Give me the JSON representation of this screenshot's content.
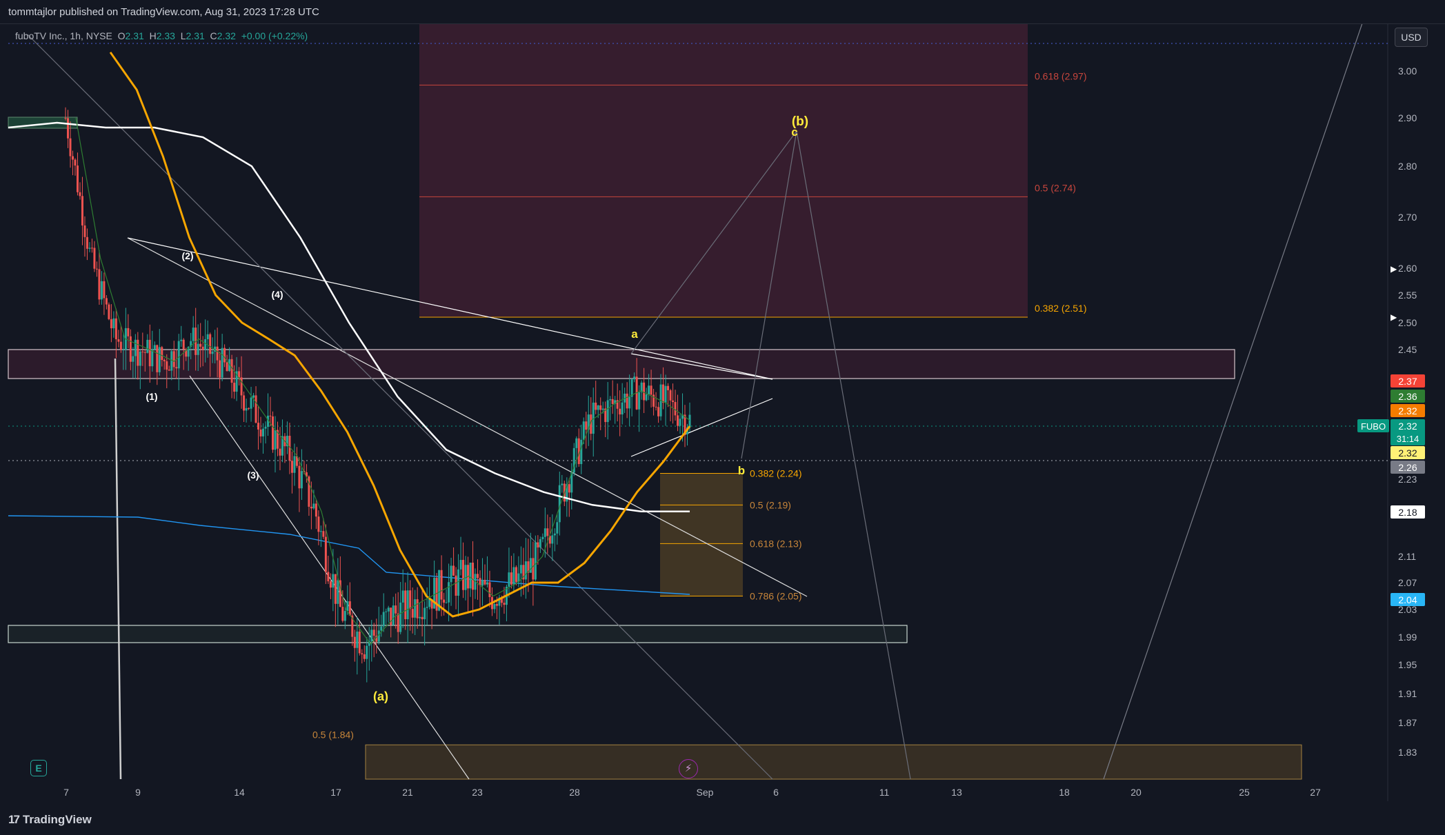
{
  "header": {
    "published_by": "tommtajlor published on TradingView.com, Aug 31, 2023 17:28 UTC"
  },
  "legend": {
    "symbol": "fuboTV Inc., 1h, NYSE",
    "o_label": "O",
    "o_val": "2.31",
    "h_label": "H",
    "h_val": "2.33",
    "l_label": "L",
    "l_val": "2.31",
    "c_label": "C",
    "c_val": "2.32",
    "change": "+0.00 (+0.22%)"
  },
  "currency_button": "USD",
  "footer_brand": "TradingView",
  "events_button": "E",
  "colors": {
    "background": "#131722",
    "up_candle": "#26a69a",
    "down_candle": "#ef5350",
    "ma_fast": "#f7a600",
    "ma_slow": "#ffffff",
    "vwap": "#2196f3",
    "fib_upper": "#4a2430",
    "fib_lower": "#3d3020",
    "wave_label": "#ffeb3b"
  },
  "chart_data": {
    "type": "line",
    "symbol": "FUBO",
    "price_axis": {
      "ticks": [
        "3.00",
        "2.90",
        "2.80",
        "2.70",
        "2.60",
        "2.55",
        "2.50",
        "2.45",
        "2.23",
        "2.11",
        "2.07",
        "2.03",
        "1.99",
        "1.95",
        "1.91",
        "1.87",
        "1.83"
      ]
    },
    "time_axis": {
      "ticks": [
        "7",
        "9",
        "14",
        "17",
        "21",
        "23",
        "28",
        "Sep",
        "6",
        "11",
        "13",
        "18",
        "20",
        "25",
        "27"
      ]
    },
    "price_badges": [
      {
        "label": "2.37",
        "color": "#f44336"
      },
      {
        "label": "2.36",
        "color": "#2e7d32"
      },
      {
        "label": "2.32",
        "color": "#f57c00"
      },
      {
        "label": "2.32",
        "color": "#089981",
        "symbol": "FUBO",
        "countdown": "31:14"
      },
      {
        "label": "2.32",
        "color": "#fff176"
      },
      {
        "label": "2.26",
        "color": "#787b86"
      },
      {
        "label": "2.18",
        "color": "#ffffff"
      },
      {
        "label": "2.04",
        "color": "#29b6f6"
      }
    ],
    "fib_levels_upper": [
      {
        "label": "0.618 (2.97)",
        "price": 2.97
      },
      {
        "label": "0.5 (2.74)",
        "price": 2.74
      },
      {
        "label": "0.382 (2.51)",
        "price": 2.51
      }
    ],
    "fib_levels_lower": [
      {
        "label": "0.382 (2.24)",
        "price": 2.24
      },
      {
        "label": "0.5 (2.19)",
        "price": 2.19
      },
      {
        "label": "0.618 (2.13)",
        "price": 2.13
      },
      {
        "label": "0.786 (2.05)",
        "price": 2.05
      }
    ],
    "fib_extension": {
      "label": "0.5 (1.84)",
      "price": 1.84
    },
    "wave_labels": [
      {
        "text": "(1)",
        "color": "#ffffff"
      },
      {
        "text": "(2)",
        "color": "#ffffff"
      },
      {
        "text": "(3)",
        "color": "#ffffff"
      },
      {
        "text": "(4)",
        "color": "#ffffff"
      },
      {
        "text": "(a)",
        "color": "#ffeb3b"
      },
      {
        "text": "a",
        "color": "#ffeb3b"
      },
      {
        "text": "b",
        "color": "#ffeb3b"
      },
      {
        "text": "c",
        "color": "#ffeb3b"
      },
      {
        "text": "(b)",
        "color": "#ffeb3b"
      }
    ],
    "series": [
      {
        "values": [
          2.9,
          2.62,
          2.47,
          2.45,
          2.43,
          2.47,
          2.44,
          2.38,
          2.32,
          2.27,
          2.18,
          2.03,
          1.98,
          2.02,
          2.04,
          2.06,
          2.08,
          2.05,
          2.07,
          2.11,
          2.22,
          2.33,
          2.36,
          2.38,
          2.36,
          2.33
        ]
      },
      {
        "values": [
          3.04,
          2.96,
          2.82,
          2.66,
          2.55,
          2.5,
          2.47,
          2.44,
          2.38,
          2.31,
          2.22,
          2.12,
          2.05,
          2.02,
          2.03,
          2.05,
          2.07,
          2.07,
          2.1,
          2.15,
          2.21,
          2.26,
          2.32
        ]
      },
      {
        "values": [
          2.88,
          2.89,
          2.88,
          2.88,
          2.86,
          2.8,
          2.66,
          2.5,
          2.37,
          2.28,
          2.24,
          2.21,
          2.19,
          2.18,
          2.18
        ]
      }
    ]
  }
}
